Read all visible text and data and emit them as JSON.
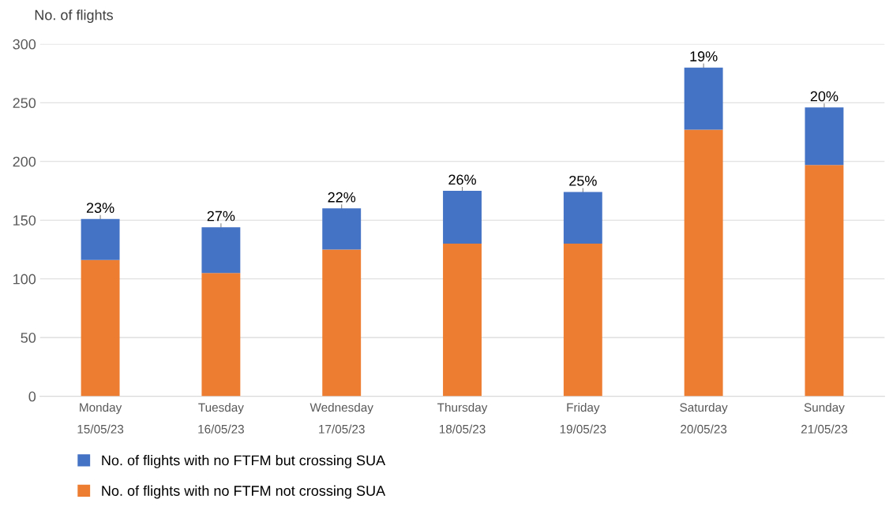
{
  "chart_data": {
    "type": "bar",
    "stacked": true,
    "ylabel": "No. of flights",
    "categories": [
      "Monday\n15/05/23",
      "Tuesday\n16/05/23",
      "Wednesday\n17/05/23",
      "Thursday\n18/05/23",
      "Friday\n19/05/23",
      "Saturday\n20/05/23",
      "Sunday\n21/05/23"
    ],
    "series": [
      {
        "name": "No. of flights with no FTFM not crossing SUA",
        "color": "#ed7d31",
        "values": [
          116,
          105,
          125,
          130,
          130,
          227,
          197
        ]
      },
      {
        "name": "No. of flights with no FTFM but crossing SUA",
        "color": "#4472c4",
        "values": [
          35,
          39,
          35,
          45,
          44,
          53,
          49
        ]
      }
    ],
    "annotations": [
      {
        "text": "23%",
        "x": "Monday\n15/05/23",
        "y": 151
      },
      {
        "text": "27%",
        "x": "Tuesday\n16/05/23",
        "y": 144
      },
      {
        "text": "22%",
        "x": "Wednesday\n17/05/23",
        "y": 160
      },
      {
        "text": "26%",
        "x": "Thursday\n18/05/23",
        "y": 175
      },
      {
        "text": "25%",
        "x": "Friday\n19/05/23",
        "y": 174
      },
      {
        "text": "19%",
        "x": "Saturday\n20/05/23",
        "y": 280
      },
      {
        "text": "20%",
        "x": "Sunday\n21/05/23",
        "y": 246
      }
    ],
    "ylim": [
      0,
      300
    ],
    "yticks": [
      0,
      50,
      100,
      150,
      200,
      250,
      300
    ],
    "grid": "y",
    "legend": "bottom left"
  }
}
